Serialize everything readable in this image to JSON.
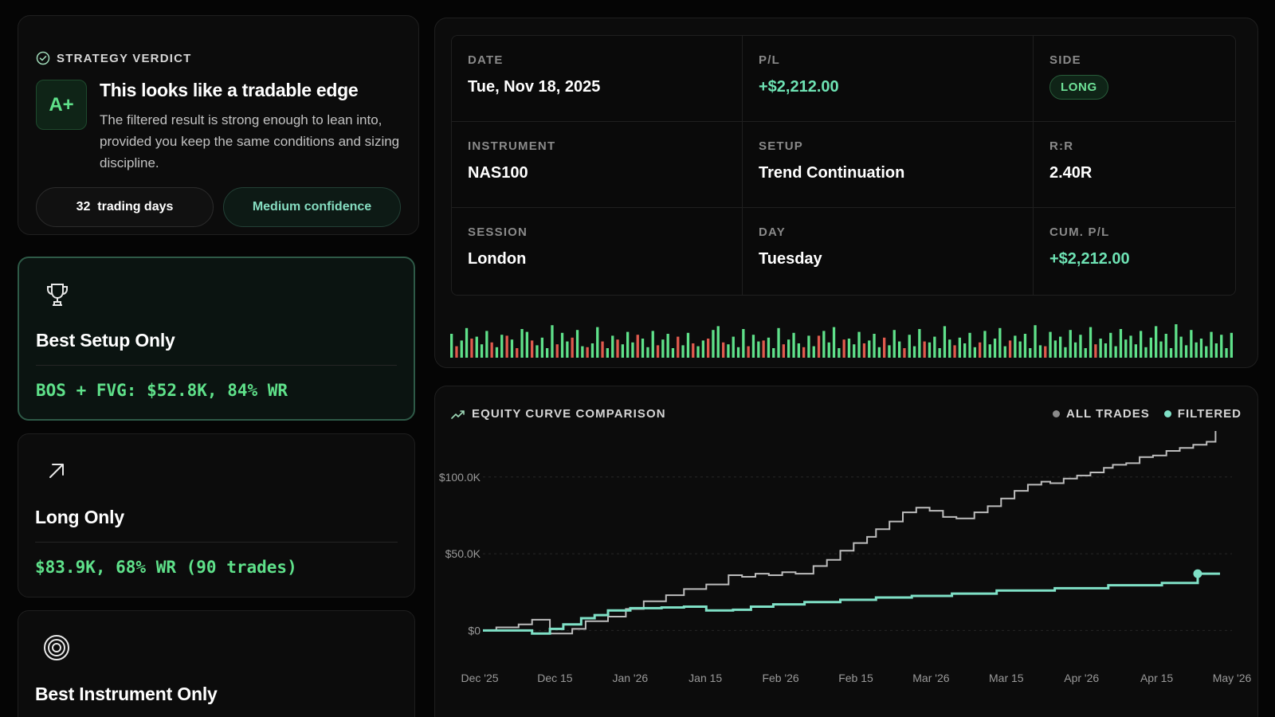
{
  "verdict": {
    "header": "STRATEGY VERDICT",
    "grade": "A+",
    "title": "This looks like a tradable edge",
    "text": "The filtered result is strong enough to lean into, provided you keep the same conditions and sizing discipline.",
    "days_count": "32",
    "days_label": "trading days",
    "confidence": "Medium confidence"
  },
  "scenarios": [
    {
      "title": "Best Setup Only",
      "stat": "BOS + FVG: $52.8K, 84% WR",
      "icon": "trophy-icon",
      "active": true
    },
    {
      "title": "Long Only",
      "stat": "$83.9K, 68% WR (90 trades)",
      "icon": "arrow-up-right-icon",
      "active": false
    },
    {
      "title": "Best Instrument Only",
      "stat": "",
      "icon": "target-icon",
      "active": false
    }
  ],
  "trade": {
    "date_label": "DATE",
    "date": "Tue, Nov 18, 2025",
    "pl_label": "P/L",
    "pl": "+$2,212.00",
    "side_label": "SIDE",
    "side": "LONG",
    "instrument_label": "INSTRUMENT",
    "instrument": "NAS100",
    "setup_label": "SETUP",
    "setup": "Trend Continuation",
    "rr_label": "R:R",
    "rr": "2.40R",
    "session_label": "SESSION",
    "session": "London",
    "day_label": "DAY",
    "day": "Tuesday",
    "cum_label": "CUM. P/L",
    "cum": "+$2,212.00"
  },
  "equity": {
    "header": "EQUITY CURVE COMPARISON",
    "legend_all": "ALL TRADES",
    "legend_filtered": "FILTERED"
  },
  "colors": {
    "green": "#5fe18a",
    "red": "#e05a4e",
    "teal": "#7fe0c6",
    "gray_line": "#bdbdbd"
  },
  "chart_data": {
    "type": "line",
    "y_ticks": [
      "$0",
      "$50.0K",
      "$100.0K"
    ],
    "x_ticks": [
      "Dec '25",
      "Dec 15",
      "Jan '26",
      "Jan 15",
      "Feb '26",
      "Feb 15",
      "Mar '26",
      "Mar 15",
      "Apr '26",
      "Apr 15",
      "May '26"
    ],
    "ylim": [
      -5000,
      130000
    ],
    "series": [
      {
        "name": "ALL TRADES",
        "x": [
          0,
          3,
          8,
          11,
          15,
          20,
          23,
          28,
          32,
          36,
          41,
          45,
          50,
          55,
          58,
          61,
          64,
          67,
          70,
          74,
          77,
          80,
          83,
          86,
          88,
          91,
          94,
          97,
          100,
          103,
          106,
          110,
          113,
          116,
          119,
          122,
          125,
          127,
          130,
          133,
          136,
          139,
          141,
          144,
          147,
          150,
          153,
          156,
          159,
          162,
          164
        ],
        "y": [
          0,
          2000,
          4000,
          7000,
          -2000,
          1000,
          6000,
          9000,
          14000,
          19000,
          23000,
          27000,
          30000,
          36000,
          35000,
          37000,
          36000,
          38000,
          37000,
          42000,
          46000,
          52000,
          57000,
          61000,
          66000,
          71000,
          77000,
          80000,
          78000,
          74000,
          73000,
          77000,
          81000,
          86000,
          91000,
          95000,
          97000,
          96000,
          99000,
          101000,
          103000,
          106000,
          108000,
          109000,
          113000,
          114000,
          117000,
          119000,
          121000,
          123000,
          130000
        ]
      },
      {
        "name": "FILTERED",
        "x": [
          0,
          8,
          11,
          15,
          18,
          22,
          25,
          28,
          33,
          40,
          45,
          50,
          56,
          60,
          65,
          72,
          80,
          88,
          96,
          105,
          115,
          128,
          140,
          152,
          160,
          165
        ],
        "y": [
          0,
          0,
          -2000,
          1000,
          4000,
          8000,
          10000,
          13000,
          14500,
          15000,
          15500,
          13000,
          13500,
          15500,
          17000,
          18500,
          20000,
          21500,
          22500,
          24000,
          26000,
          27500,
          29500,
          31000,
          37000,
          37000
        ]
      }
    ],
    "bars": [
      2.5,
      -1.2,
      1.8,
      3.1,
      -2.0,
      2.2,
      1.4,
      2.8,
      -1.6,
      1.1,
      2.4,
      -2.3,
      1.9,
      -1.0,
      3.0,
      2.7,
      -1.8,
      1.3,
      2.1,
      1.0,
      3.4,
      -1.4,
      2.6,
      1.7,
      -2.1,
      2.9,
      1.2,
      -1.1,
      1.5,
      3.2,
      -1.7,
      1.0,
      2.3,
      -1.9,
      1.4,
      2.7,
      1.6,
      -2.4,
      2.0,
      1.1,
      2.8,
      -1.3,
      1.9,
      2.5,
      1.0,
      -2.2,
      1.3,
      2.6,
      -1.5,
      1.2,
      1.8,
      -2.0,
      2.9,
      3.3,
      -1.6,
      1.4,
      2.2,
      1.1,
      3.0,
      -1.2,
      2.4,
      1.7,
      -1.8,
      2.1,
      1.0,
      3.1,
      -1.4,
      1.9,
      2.6,
      1.5,
      -1.1,
      2.3,
      1.2,
      -2.3,
      2.8,
      1.6,
      3.2,
      1.0,
      -1.9,
      2.0,
      1.4,
      2.7,
      -1.5,
      1.8,
      2.5,
      1.1,
      -2.1,
      1.3,
      2.9,
      1.7,
      -1.0,
      2.4,
      1.2,
      3.0,
      -1.7,
      1.6,
      2.2,
      1.0,
      3.3,
      1.9,
      -1.3,
      2.1,
      1.5,
      2.6,
      1.1,
      -1.6,
      2.8,
      1.4,
      2.0,
      3.1,
      1.2,
      -1.8,
      2.3,
      1.7,
      2.5,
      1.0,
      3.4,
      1.3,
      -1.2,
      2.7,
      1.8,
      2.2,
      1.1,
      2.9,
      1.6,
      2.4,
      1.0,
      3.2,
      -1.4,
      2.0,
      1.5,
      2.6,
      1.2,
      3.0,
      1.9,
      2.3,
      1.4,
      2.8,
      1.1,
      2.1,
      3.3,
      1.7,
      2.5,
      1.0,
      3.5,
      2.2,
      1.3,
      2.9,
      1.6,
      2.0,
      1.2,
      2.7,
      1.5,
      2.4,
      1.0,
      2.6
    ]
  }
}
